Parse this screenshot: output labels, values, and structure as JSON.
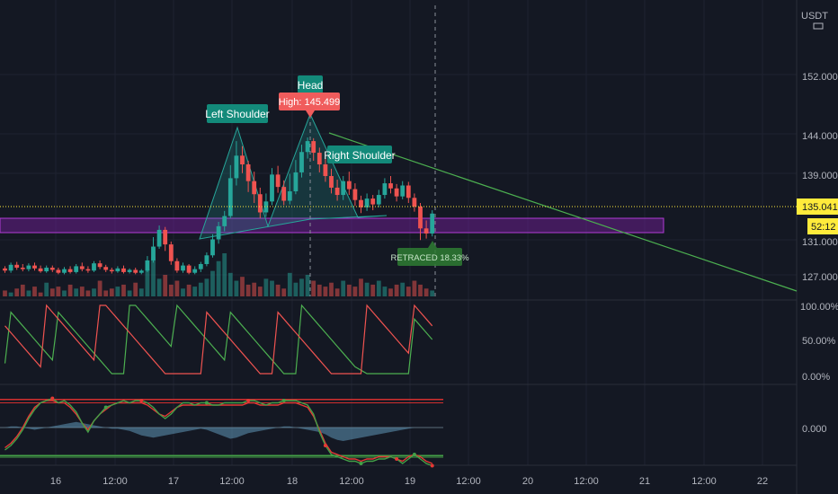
{
  "currency": "USDT",
  "price_axis": {
    "ticks": [
      "152.000",
      "144.000",
      "139.000",
      "131.000",
      "127.000"
    ],
    "last_price": "135.041",
    "countdown": "52:12"
  },
  "oscillator_axis": {
    "ticks": [
      "100.00%",
      "50.00%",
      "0.00%"
    ]
  },
  "momentum_axis": {
    "ticks": [
      "0.000"
    ]
  },
  "time_axis": {
    "ticks": [
      "16",
      "12:00",
      "17",
      "12:00",
      "18",
      "12:00",
      "19",
      "12:00",
      "20",
      "12:00",
      "21",
      "12:00",
      "22"
    ]
  },
  "annotations": {
    "left_shoulder": "Left Shoulder",
    "head": "Head",
    "high_label": "High: 145.499",
    "right_shoulder": "Right Shoulder",
    "retraced": "RETRACED 18.33%"
  },
  "colors": {
    "up": "#26a69a",
    "down": "#ef5350",
    "label_teal": "#138a7a",
    "label_red": "#f05c5c",
    "zone_purple": "#7b1fa2",
    "trendline": "#4caf50",
    "price_tag": "#ffeb3b"
  },
  "chart_data": {
    "type": "candlestick",
    "price_scale_ticks": [
      152,
      144,
      139,
      131,
      127
    ],
    "last_price": 135.041,
    "pattern": "Head and Shoulders",
    "head_high": 145.499,
    "retracement_pct": 18.33,
    "candles": [
      [
        127.5,
        127.2,
        127.8,
        126.9
      ],
      [
        127.2,
        128.0,
        128.3,
        126.9
      ],
      [
        128.0,
        127.6,
        128.4,
        127.3
      ],
      [
        127.6,
        127.4,
        128.1,
        127.1
      ],
      [
        127.4,
        127.9,
        128.2,
        127.1
      ],
      [
        127.9,
        127.5,
        128.3,
        127.2
      ],
      [
        127.5,
        127.1,
        127.9,
        126.9
      ],
      [
        127.1,
        127.6,
        127.9,
        126.9
      ],
      [
        127.6,
        127.3,
        127.9,
        127.0
      ],
      [
        127.3,
        126.9,
        127.6,
        126.7
      ],
      [
        126.9,
        127.4,
        127.7,
        126.7
      ],
      [
        127.4,
        127.0,
        127.8,
        126.8
      ],
      [
        127.0,
        127.8,
        128.1,
        126.8
      ],
      [
        127.8,
        127.4,
        128.3,
        127.1
      ],
      [
        127.4,
        127.2,
        127.8,
        126.9
      ],
      [
        127.2,
        128.2,
        128.5,
        127.0
      ],
      [
        128.2,
        127.7,
        128.6,
        127.4
      ],
      [
        127.7,
        127.3,
        128.0,
        127.0
      ],
      [
        127.3,
        127.1,
        127.6,
        126.8
      ],
      [
        127.1,
        127.5,
        127.8,
        126.9
      ],
      [
        127.5,
        127.0,
        127.9,
        126.8
      ],
      [
        127.0,
        127.3,
        127.5,
        126.8
      ],
      [
        127.3,
        126.9,
        127.6,
        126.7
      ],
      [
        126.9,
        127.2,
        127.4,
        126.7
      ],
      [
        127.2,
        128.6,
        129.2,
        127.0
      ],
      [
        128.6,
        130.5,
        131.8,
        128.3
      ],
      [
        130.5,
        132.8,
        133.4,
        130.2
      ],
      [
        132.8,
        130.8,
        133.2,
        129.9
      ],
      [
        130.8,
        128.5,
        131.2,
        128.0
      ],
      [
        128.5,
        127.2,
        128.9,
        126.9
      ],
      [
        127.2,
        127.9,
        128.3,
        126.9
      ],
      [
        127.9,
        126.9,
        128.1,
        126.7
      ],
      [
        126.9,
        127.4,
        127.8,
        126.7
      ],
      [
        127.4,
        128.1,
        128.4,
        127.0
      ],
      [
        128.1,
        129.3,
        129.7,
        127.8
      ],
      [
        129.3,
        131.5,
        132.2,
        129.0
      ],
      [
        131.5,
        133.3,
        133.9,
        130.9
      ],
      [
        133.3,
        134.7,
        135.4,
        132.6
      ],
      [
        134.7,
        139.9,
        141.7,
        134.4
      ],
      [
        139.9,
        143.0,
        145.0,
        138.9
      ],
      [
        143.0,
        141.8,
        144.3,
        140.6
      ],
      [
        141.8,
        139.5,
        142.3,
        138.0
      ],
      [
        139.5,
        137.7,
        140.8,
        136.5
      ],
      [
        137.7,
        135.2,
        138.6,
        134.4
      ],
      [
        135.2,
        136.7,
        137.8,
        134.6
      ],
      [
        136.7,
        140.4,
        141.3,
        136.2
      ],
      [
        140.4,
        138.7,
        141.6,
        137.9
      ],
      [
        138.7,
        136.8,
        139.6,
        136.2
      ],
      [
        136.8,
        138.1,
        140.5,
        136.3
      ],
      [
        138.1,
        140.7,
        142.4,
        137.7
      ],
      [
        140.7,
        143.5,
        144.5,
        140.0
      ],
      [
        143.5,
        145.0,
        145.5,
        142.6
      ],
      [
        145.0,
        143.4,
        145.4,
        142.3
      ],
      [
        143.4,
        141.8,
        144.1,
        140.7
      ],
      [
        141.8,
        140.2,
        142.6,
        139.4
      ],
      [
        140.2,
        138.6,
        141.2,
        137.8
      ],
      [
        138.6,
        137.6,
        139.7,
        136.8
      ],
      [
        137.6,
        139.5,
        140.2,
        136.9
      ],
      [
        139.5,
        138.4,
        140.8,
        137.6
      ],
      [
        138.4,
        136.9,
        139.2,
        136.1
      ],
      [
        136.9,
        135.9,
        137.5,
        135.1
      ],
      [
        135.9,
        137.1,
        137.8,
        135.4
      ],
      [
        137.1,
        136.3,
        137.6,
        135.5
      ],
      [
        136.3,
        137.6,
        138.3,
        135.9
      ],
      [
        137.6,
        139.2,
        139.9,
        137.1
      ],
      [
        139.2,
        138.5,
        140.2,
        137.8
      ],
      [
        138.5,
        137.4,
        139.1,
        136.7
      ],
      [
        137.4,
        138.9,
        139.5,
        137.0
      ],
      [
        138.9,
        137.2,
        139.4,
        136.5
      ],
      [
        137.2,
        136.0,
        137.8,
        135.3
      ],
      [
        136.0,
        133.0,
        136.5,
        131.4
      ],
      [
        133.0,
        132.3,
        134.1,
        131.6
      ],
      [
        132.3,
        135.041,
        135.5,
        131.9
      ]
    ],
    "volume": [
      3,
      2,
      4,
      6,
      3,
      5,
      2,
      7,
      4,
      5,
      3,
      6,
      4,
      5,
      3,
      4,
      8,
      3,
      4,
      5,
      6,
      3,
      7,
      4,
      14,
      20,
      9,
      11,
      6,
      8,
      4,
      6,
      5,
      7,
      9,
      13,
      18,
      22,
      12,
      8,
      10,
      6,
      7,
      5,
      9,
      8,
      6,
      4,
      12,
      7,
      9,
      11,
      8,
      6,
      5,
      7,
      4,
      8,
      6,
      5,
      9,
      7,
      6,
      8,
      5,
      4,
      6,
      7,
      5,
      8,
      6,
      4,
      3
    ],
    "aroon_up": [
      15,
      90,
      80,
      70,
      60,
      50,
      40,
      30,
      20,
      90,
      80,
      70,
      60,
      50,
      40,
      30,
      20,
      10,
      0,
      0,
      0,
      100,
      100,
      90,
      80,
      70,
      60,
      50,
      40,
      100,
      90,
      80,
      70,
      60,
      50,
      40,
      30,
      20,
      90,
      80,
      70,
      60,
      50,
      40,
      30,
      20,
      10,
      0,
      0,
      0,
      100,
      90,
      80,
      70,
      60,
      50,
      40,
      30,
      20,
      10,
      5,
      0,
      0,
      0,
      0,
      0,
      0,
      0,
      0,
      80,
      70,
      60,
      50
    ],
    "aroon_down": [
      70,
      60,
      50,
      40,
      30,
      20,
      10,
      100,
      90,
      80,
      70,
      60,
      50,
      40,
      30,
      20,
      100,
      100,
      90,
      80,
      70,
      60,
      50,
      40,
      30,
      20,
      10,
      0,
      0,
      0,
      0,
      0,
      0,
      0,
      90,
      80,
      70,
      60,
      50,
      40,
      30,
      20,
      10,
      0,
      0,
      0,
      90,
      80,
      70,
      60,
      50,
      40,
      30,
      20,
      10,
      0,
      0,
      0,
      0,
      0,
      0,
      100,
      90,
      80,
      70,
      60,
      50,
      40,
      30,
      100,
      90,
      80,
      70
    ],
    "momentum_green": [
      -1.0,
      -0.8,
      -0.5,
      -0.1,
      0.4,
      0.8,
      1.1,
      1.2,
      1.3,
      1.1,
      1.2,
      1.0,
      0.7,
      0.2,
      -0.2,
      0.3,
      0.6,
      0.9,
      1.0,
      1.1,
      1.2,
      1.1,
      1.2,
      1.2,
      1.1,
      0.9,
      0.6,
      0.4,
      0.6,
      0.9,
      1.1,
      1.1,
      1.0,
      1.1,
      1.1,
      1.0,
      1.0,
      1.1,
      1.1,
      1.1,
      1.1,
      1.2,
      1.2,
      1.1,
      1.0,
      1.1,
      1.1,
      1.2,
      1.2,
      1.2,
      1.1,
      1.0,
      0.6,
      -0.2,
      -0.8,
      -1.2,
      -1.3,
      -1.4,
      -1.5,
      -1.5,
      -1.6,
      -1.5,
      -1.5,
      -1.4,
      -1.4,
      -1.3,
      -1.4,
      -1.6,
      -1.4,
      -1.2,
      -1.4,
      -1.6,
      -1.7
    ],
    "momentum_red": [
      -0.9,
      -0.7,
      -0.4,
      0.0,
      0.5,
      0.9,
      1.1,
      1.2,
      1.2,
      1.1,
      1.1,
      0.9,
      0.6,
      0.2,
      -0.1,
      0.3,
      0.6,
      0.8,
      1.0,
      1.1,
      1.1,
      1.1,
      1.1,
      1.1,
      1.0,
      0.8,
      0.6,
      0.5,
      0.7,
      0.9,
      1.0,
      1.0,
      1.0,
      1.0,
      1.0,
      1.0,
      1.0,
      1.0,
      1.0,
      1.0,
      1.0,
      1.1,
      1.1,
      1.0,
      1.0,
      1.0,
      1.0,
      1.1,
      1.1,
      1.1,
      1.0,
      0.9,
      0.5,
      -0.1,
      -0.7,
      -1.1,
      -1.2,
      -1.3,
      -1.4,
      -1.4,
      -1.5,
      -1.4,
      -1.4,
      -1.3,
      -1.3,
      -1.3,
      -1.4,
      -1.5,
      -1.3,
      -1.2,
      -1.3,
      -1.5,
      -1.6
    ],
    "momentum_histogram": [
      0.0,
      0.05,
      0.05,
      0.0,
      -0.05,
      -0.1,
      -0.05,
      0.0,
      0.05,
      0.1,
      0.15,
      0.2,
      0.25,
      0.2,
      0.15,
      0.1,
      0.05,
      0.0,
      -0.05,
      -0.05,
      -0.1,
      -0.15,
      -0.25,
      -0.35,
      -0.4,
      -0.45,
      -0.4,
      -0.35,
      -0.3,
      -0.25,
      -0.2,
      -0.15,
      -0.1,
      -0.05,
      -0.1,
      -0.2,
      -0.3,
      -0.4,
      -0.5,
      -0.45,
      -0.35,
      -0.25,
      -0.2,
      -0.15,
      -0.1,
      -0.05,
      0.0,
      0.05,
      0.05,
      0.0,
      -0.05,
      -0.1,
      -0.15,
      -0.2,
      -0.3,
      -0.45,
      -0.55,
      -0.6,
      -0.55,
      -0.5,
      -0.45,
      -0.4,
      -0.35,
      -0.3,
      -0.25,
      -0.2,
      -0.15,
      -0.1,
      -0.05,
      0.0,
      0.0,
      0.0,
      0.0
    ]
  }
}
